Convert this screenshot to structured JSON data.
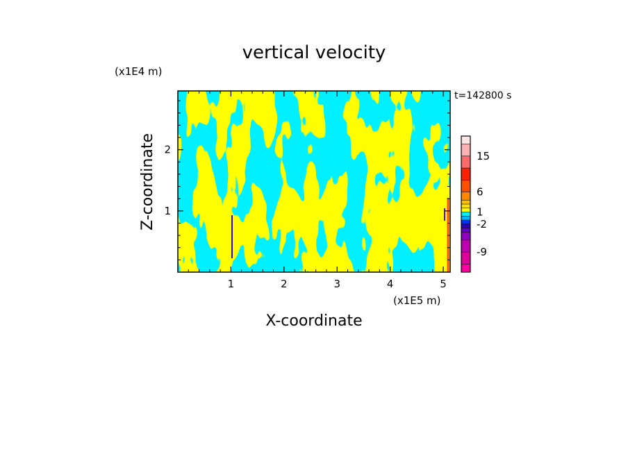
{
  "chart_data": {
    "type": "heatmap",
    "title": "vertical velocity",
    "xlabel": "X-coordinate",
    "ylabel": "Z-coordinate",
    "x_unit": "(x1E5 m)",
    "y_unit": "(x1E4 m)",
    "time_label": "t=142800 s",
    "xlim": [
      0,
      5.13
    ],
    "ylim": [
      0,
      2.96
    ],
    "x_ticks": [
      1,
      2,
      3,
      4,
      5
    ],
    "y_ticks": [
      1,
      2
    ],
    "colorbar": {
      "tick_labels": [
        "15",
        "6",
        "1",
        "-2",
        "-9"
      ],
      "tick_values": [
        15,
        6,
        1,
        -2,
        -9
      ],
      "levels": [
        -14,
        -12,
        -9,
        -6,
        -4,
        -3,
        -2,
        -1,
        0,
        1,
        2,
        3,
        4,
        6,
        9,
        12,
        15,
        18,
        20
      ],
      "colors": [
        "#ff00a0",
        "#e0009a",
        "#c000b0",
        "#9000c0",
        "#6000d0",
        "#3000c0",
        "#0030ff",
        "#00b4ff",
        "#00f0ff",
        "#ffff00",
        "#ffe000",
        "#ffc000",
        "#ff8800",
        "#ff5000",
        "#ff2000",
        "#ff6a6a",
        "#ffb0b0",
        "#ffe6e6"
      ]
    },
    "dominant_colors": {
      "updraft": "#ffff00",
      "downdraft": "#00f0ff"
    }
  }
}
